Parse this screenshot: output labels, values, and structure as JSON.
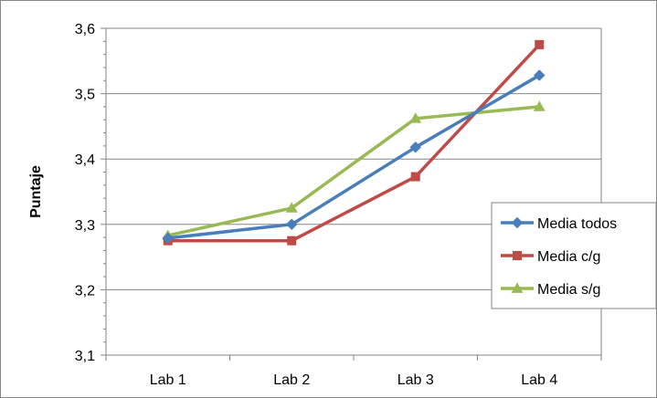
{
  "chart_data": {
    "type": "line",
    "title": "",
    "xlabel": "",
    "ylabel": "Puntaje",
    "categories": [
      "Lab 1",
      "Lab 2",
      "Lab 3",
      "Lab 4"
    ],
    "ylim": [
      3.1,
      3.6
    ],
    "yticks": [
      "3,1",
      "3,2",
      "3,3",
      "3,4",
      "3,5",
      "3,6"
    ],
    "grid": true,
    "legend_position": "right",
    "series": [
      {
        "name": "Media todos",
        "values": [
          3.279,
          3.3,
          3.418,
          3.528
        ],
        "color": "#4a7ebb",
        "marker": "diamond"
      },
      {
        "name": "Media c/g",
        "values": [
          3.275,
          3.275,
          3.373,
          3.575
        ],
        "color": "#be4b48",
        "marker": "square"
      },
      {
        "name": "Media s/g",
        "values": [
          3.283,
          3.325,
          3.462,
          3.48
        ],
        "color": "#98b954",
        "marker": "triangle"
      }
    ]
  }
}
